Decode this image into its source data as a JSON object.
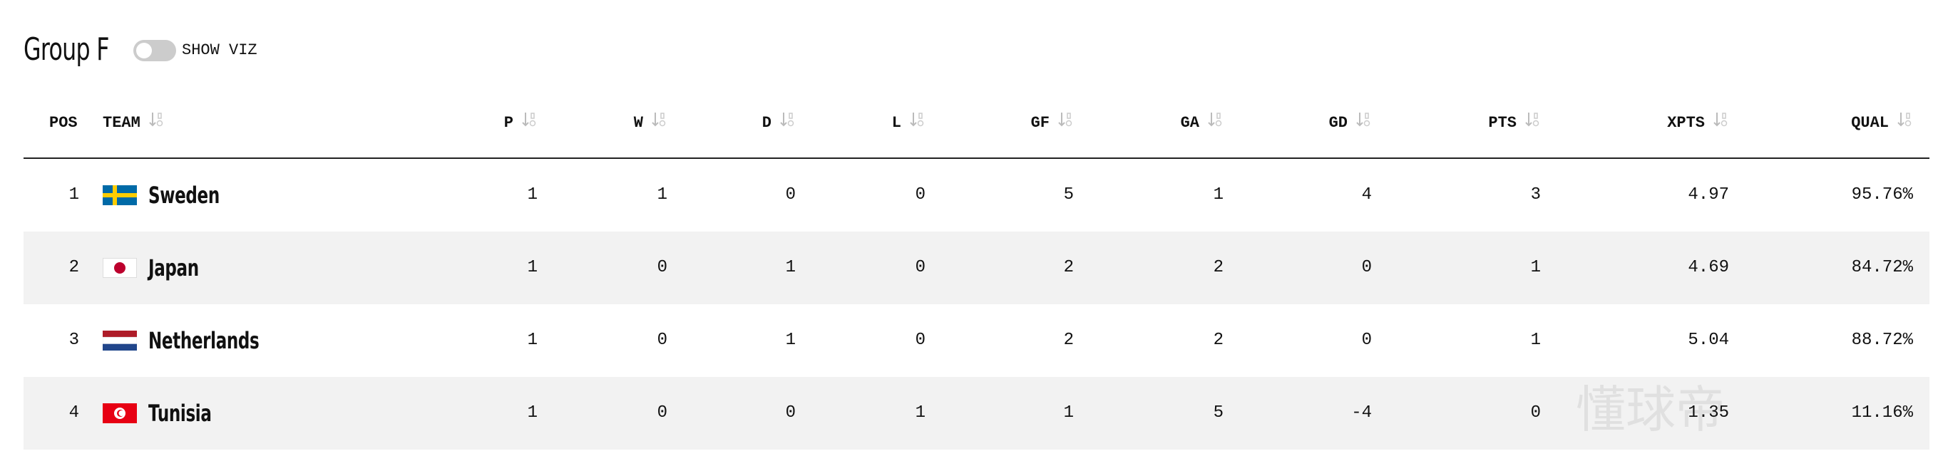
{
  "header": {
    "title": "Group F",
    "toggle_label": "SHOW VIZ"
  },
  "table": {
    "columns": [
      "POS",
      "TEAM",
      "P",
      "W",
      "D",
      "L",
      "GF",
      "GA",
      "GD",
      "PTS",
      "XPTS",
      "QUAL"
    ],
    "rows": [
      [
        "1",
        "Sweden",
        "1",
        "1",
        "0",
        "0",
        "5",
        "1",
        "4",
        "3",
        "4.97",
        "95.76%"
      ],
      [
        "2",
        "Japan",
        "1",
        "0",
        "1",
        "0",
        "2",
        "2",
        "0",
        "1",
        "4.69",
        "84.72%"
      ],
      [
        "3",
        "Netherlands",
        "1",
        "0",
        "1",
        "0",
        "2",
        "2",
        "0",
        "1",
        "5.04",
        "88.72%"
      ],
      [
        "4",
        "Tunisia",
        "1",
        "0",
        "0",
        "1",
        "1",
        "5",
        "-4",
        "0",
        "1.35",
        "11.16%"
      ]
    ]
  },
  "watermark": "懂球帝"
}
